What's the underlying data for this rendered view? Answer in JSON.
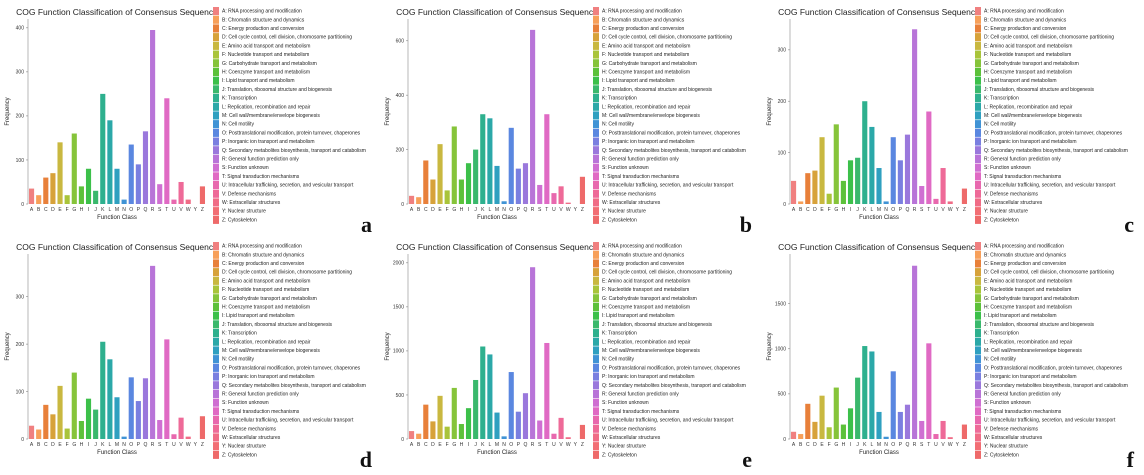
{
  "colors": [
    "#f08080",
    "#f7a05a",
    "#e8803a",
    "#d7a23a",
    "#c9b840",
    "#a9c43a",
    "#86c43a",
    "#5cc13a",
    "#3cc04a",
    "#3ab86c",
    "#2eb08e",
    "#2ba8a8",
    "#2fa0c0",
    "#4093d5",
    "#5a87e0",
    "#7a7fe0",
    "#9a78dc",
    "#b874d8",
    "#cf6fd2",
    "#e06ac4",
    "#e868ae",
    "#ee6a98",
    "#f06c86",
    "#f26e74",
    "#ee6a6a"
  ],
  "legend": [
    "A: RNA processing and modification",
    "B: Chromatin structure and dynamics",
    "C: Energy production and conversion",
    "D: Cell cycle control, cell division, chromosome partitioning",
    "E: Amino acid transport and metabolism",
    "F: Nucleotide transport and metabolism",
    "G: Carbohydrate transport and metabolism",
    "H: Coenzyme transport and metabolism",
    "I: Lipid transport and metabolism",
    "J: Translation, ribosomal structure and biogenesis",
    "K: Transcription",
    "L: Replication, recombination and repair",
    "M: Cell wall/membrane/envelope biogenesis",
    "N: Cell motility",
    "O: Posttranslational modification, protein turnover, chaperones",
    "P: Inorganic ion transport and metabolism",
    "Q: Secondary metabolites biosynthesis, transport and catabolism",
    "R: General function prediction only",
    "S: Function unknown",
    "T: Signal transduction mechanisms",
    "U: Intracellular trafficking, secretion, and vesicular transport",
    "V: Defense mechanisms",
    "W: Extracellular structures",
    "Y: Nuclear structure",
    "Z: Cytoskeleton"
  ],
  "chart_data": [
    {
      "panel": "a",
      "type": "bar",
      "title": "COG Function Classification of Consensus Sequence",
      "xlabel": "Function Class",
      "ylabel": "Frequency",
      "categories": [
        "A",
        "B",
        "C",
        "D",
        "E",
        "F",
        "G",
        "H",
        "I",
        "J",
        "K",
        "L",
        "M",
        "N",
        "O",
        "P",
        "Q",
        "R",
        "S",
        "T",
        "U",
        "V",
        "W",
        "Y",
        "Z"
      ],
      "values": [
        35,
        20,
        60,
        70,
        140,
        20,
        160,
        40,
        80,
        30,
        250,
        190,
        80,
        10,
        135,
        90,
        165,
        395,
        45,
        240,
        10,
        50,
        10,
        0,
        40
      ],
      "yticks": [
        0,
        100,
        200,
        300,
        400
      ],
      "ylim": [
        0,
        420
      ]
    },
    {
      "panel": "b",
      "type": "bar",
      "title": "COG Function Classification of Consensus Sequence",
      "xlabel": "Function Class",
      "ylabel": "Frequency",
      "categories": [
        "A",
        "B",
        "C",
        "D",
        "E",
        "F",
        "G",
        "H",
        "I",
        "J",
        "K",
        "L",
        "M",
        "N",
        "O",
        "P",
        "Q",
        "R",
        "S",
        "T",
        "U",
        "V",
        "W",
        "Y",
        "Z"
      ],
      "values": [
        30,
        25,
        160,
        90,
        220,
        50,
        285,
        90,
        150,
        200,
        330,
        315,
        140,
        10,
        280,
        130,
        150,
        640,
        70,
        330,
        40,
        65,
        5,
        0,
        100
      ],
      "yticks": [
        0,
        200,
        400,
        600
      ],
      "ylim": [
        0,
        680
      ]
    },
    {
      "panel": "c",
      "type": "bar",
      "title": "COG Function Classification of Consensus Sequence",
      "xlabel": "Function Class",
      "ylabel": "Frequency",
      "categories": [
        "A",
        "B",
        "C",
        "D",
        "E",
        "F",
        "G",
        "H",
        "I",
        "J",
        "K",
        "L",
        "M",
        "N",
        "O",
        "P",
        "Q",
        "R",
        "S",
        "T",
        "U",
        "V",
        "W",
        "Y",
        "Z"
      ],
      "values": [
        45,
        5,
        60,
        65,
        130,
        20,
        155,
        45,
        85,
        90,
        200,
        150,
        70,
        5,
        130,
        85,
        135,
        340,
        35,
        180,
        10,
        70,
        5,
        0,
        30
      ],
      "yticks": [
        0,
        100,
        200,
        300
      ],
      "ylim": [
        0,
        360
      ]
    },
    {
      "panel": "d",
      "type": "bar",
      "title": "COG Function Classification of Consensus Sequence",
      "xlabel": "Function Class",
      "ylabel": "Frequency",
      "categories": [
        "A",
        "B",
        "C",
        "D",
        "E",
        "F",
        "G",
        "H",
        "I",
        "J",
        "K",
        "L",
        "M",
        "N",
        "O",
        "P",
        "Q",
        "R",
        "S",
        "T",
        "U",
        "V",
        "W",
        "Y",
        "Z"
      ],
      "values": [
        28,
        20,
        72,
        52,
        112,
        22,
        140,
        38,
        85,
        62,
        205,
        168,
        88,
        5,
        130,
        80,
        128,
        365,
        40,
        210,
        10,
        45,
        5,
        0,
        48
      ],
      "yticks": [
        0,
        100,
        200,
        300
      ],
      "ylim": [
        0,
        390
      ]
    },
    {
      "panel": "e",
      "type": "bar",
      "title": "COG Function Classification of Consensus Sequence",
      "xlabel": "Function Class",
      "ylabel": "Frequency",
      "categories": [
        "A",
        "B",
        "C",
        "D",
        "E",
        "F",
        "G",
        "H",
        "I",
        "J",
        "K",
        "L",
        "M",
        "N",
        "O",
        "P",
        "Q",
        "R",
        "S",
        "T",
        "U",
        "V",
        "W",
        "Y",
        "Z"
      ],
      "values": [
        90,
        60,
        390,
        200,
        490,
        140,
        580,
        170,
        350,
        670,
        1050,
        960,
        300,
        30,
        760,
        310,
        520,
        1950,
        210,
        1090,
        60,
        240,
        20,
        0,
        160
      ],
      "yticks": [
        0,
        500,
        1000,
        1500,
        2000
      ],
      "ylim": [
        0,
        2100
      ]
    },
    {
      "panel": "f",
      "type": "bar",
      "title": "COG Function Classification of Consensus Sequence",
      "xlabel": "Function Class",
      "ylabel": "Frequency",
      "categories": [
        "A",
        "B",
        "C",
        "D",
        "E",
        "F",
        "G",
        "H",
        "I",
        "J",
        "K",
        "L",
        "M",
        "N",
        "O",
        "P",
        "Q",
        "R",
        "S",
        "T",
        "U",
        "V",
        "W",
        "Y",
        "Z"
      ],
      "values": [
        80,
        55,
        390,
        190,
        480,
        130,
        570,
        160,
        340,
        680,
        1030,
        970,
        300,
        25,
        750,
        300,
        380,
        1920,
        200,
        1060,
        55,
        200,
        20,
        0,
        160
      ],
      "yticks": [
        0,
        500,
        1000,
        1500
      ],
      "ylim": [
        0,
        2050
      ]
    }
  ]
}
